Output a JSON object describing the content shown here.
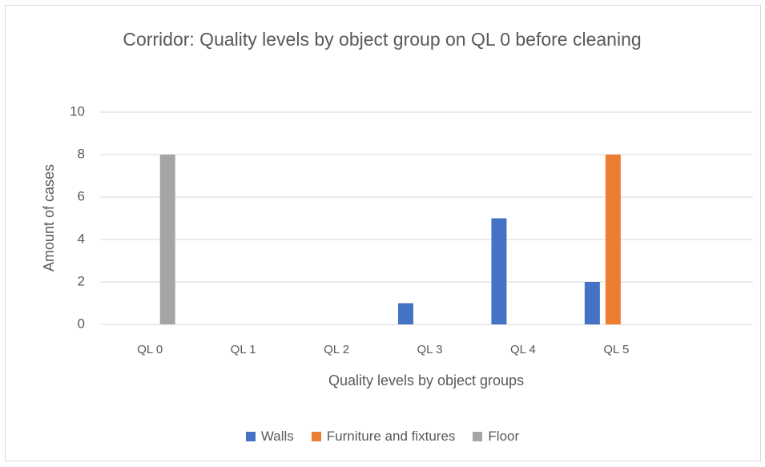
{
  "chart_data": {
    "type": "bar",
    "title": "Corridor: Quality levels by object group on QL 0 before cleaning",
    "x_label": "Quality levels by object groups",
    "y_label": "Amount of cases",
    "categories": [
      "QL 0",
      "QL 1",
      "QL 2",
      "QL 3",
      "QL 4",
      "QL 5",
      null
    ],
    "series": [
      {
        "name": "Walls",
        "color": "#4472c4",
        "values": [
          0,
          0,
          0,
          1,
          5,
          2,
          null
        ]
      },
      {
        "name": "Furniture and fixtures",
        "color": "#ed7d31",
        "values": [
          0,
          0,
          0,
          0,
          0,
          8,
          null
        ]
      },
      {
        "name": "Floor",
        "color": "#a5a5a5",
        "values": [
          8,
          0,
          0,
          0,
          0,
          0,
          null
        ]
      }
    ],
    "ylim": [
      0,
      10
    ],
    "yticks": [
      0,
      2,
      4,
      6,
      8,
      10
    ],
    "grid": true,
    "legend": "bottom"
  }
}
